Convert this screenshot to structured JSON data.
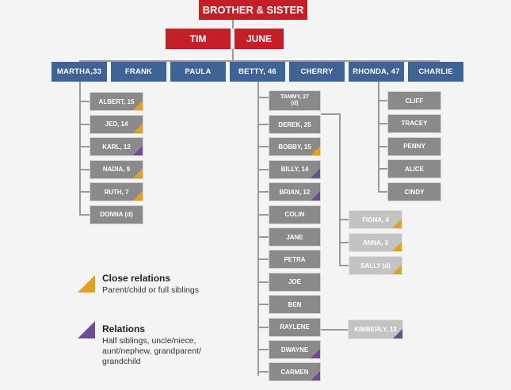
{
  "header": {
    "title": "BROTHER & SISTER"
  },
  "parents": [
    "TIM",
    "JUNE"
  ],
  "children": [
    "MARTHA,33",
    "FRANK",
    "PAULA",
    "BETTY, 46",
    "CHERRY",
    "RHONDA, 47",
    "CHARLIE"
  ],
  "martha_kids": [
    {
      "name": "ALBERT, 15",
      "marker": "close"
    },
    {
      "name": "JED, 14",
      "marker": "close"
    },
    {
      "name": "KARL, 12",
      "marker": "relation"
    },
    {
      "name": "NADIA, 9",
      "marker": "close"
    },
    {
      "name": "RUTH, 7",
      "marker": "close"
    },
    {
      "name": "DONNA (d)",
      "marker": "none"
    }
  ],
  "betty_kids": [
    {
      "name": "TAMMY, 27",
      "sub": "(d)",
      "marker": "none"
    },
    {
      "name": "DEREK, 25",
      "marker": "none"
    },
    {
      "name": "BOBBY, 15",
      "marker": "close"
    },
    {
      "name": "BILLY, 14",
      "marker": "relation"
    },
    {
      "name": "BRIAN, 12",
      "marker": "relation"
    },
    {
      "name": "COLIN",
      "marker": "none"
    },
    {
      "name": "JANE",
      "marker": "none"
    },
    {
      "name": "PETRA",
      "marker": "none"
    },
    {
      "name": "JOE",
      "marker": "none"
    },
    {
      "name": "BEN",
      "marker": "none"
    },
    {
      "name": "RAYLENE",
      "marker": "none"
    },
    {
      "name": "DWAYNE",
      "marker": "relation"
    },
    {
      "name": "CARMEN",
      "marker": "relation"
    }
  ],
  "tammy_kids": [
    {
      "name": "FIONA, 4",
      "marker": "close"
    },
    {
      "name": "ANNA, 3",
      "marker": "close"
    },
    {
      "name": "SALLY (d)",
      "marker": "close"
    }
  ],
  "raylene_kids": [
    {
      "name": "KIMBERLY, 13",
      "marker": "relation"
    }
  ],
  "rhonda_kids": [
    "CLIFF",
    "TRACEY",
    "PENNY",
    "ALICE",
    "CINDY"
  ],
  "legend": {
    "close_title": "Close relations",
    "close_desc": "Parent/child or full siblings",
    "relation_title": "Relations",
    "relation_desc": "Half siblings, uncle/niece, aunt/nephew, grandparent/ grandchild"
  },
  "colors": {
    "red": "#c41e26",
    "blue": "#3e6496",
    "gray": "#8a8a8a",
    "light": "#c3c3c3",
    "close": "#e4a11d",
    "relation": "#6b4c96"
  }
}
